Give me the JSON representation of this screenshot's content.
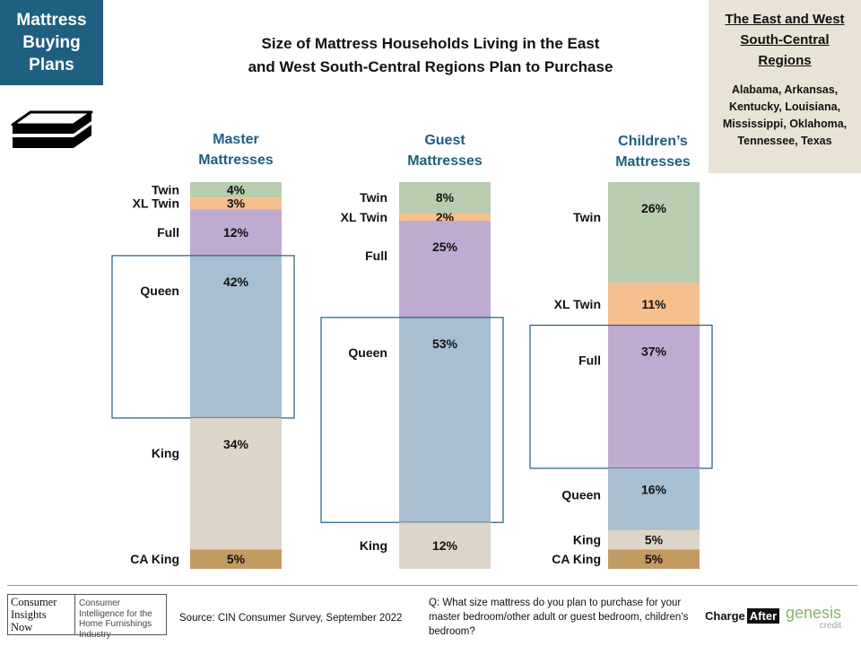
{
  "badge": {
    "line1": "Mattress",
    "line2": "Buying",
    "line3": "Plans"
  },
  "title": {
    "line1": "Size of Mattress Households  Living in the East",
    "line2": "and West South-Central  Regions Plan to Purchase"
  },
  "region": {
    "title": "The East and West South-Central Regions",
    "states": "Alabama, Arkansas, Kentucky, Louisiana, Mississippi, Oklahoma, Tennessee, Texas"
  },
  "footer": {
    "cin_logo_left": [
      "Consumer",
      "Insights",
      "Now"
    ],
    "cin_logo_right": "Consumer Intelligence for the Home Furnishings Industry",
    "source": "Source: CIN Consumer Survey, September  2022",
    "question": "Q: What size mattress do you plan to purchase for your master bedroom/other adult or guest bedroom, children’s bedroom?",
    "chargeafter_1": "Charge",
    "chargeafter_2": "After",
    "genesis_1": "genesis",
    "genesis_2": "credit"
  },
  "chart_data": {
    "type": "bar",
    "stacked": true,
    "colors": {
      "Twin": "#b8cdb0",
      "XL Twin": "#f6bf8e",
      "Full": "#bfaad0",
      "Queen": "#a7bfd0",
      "King": "#ddd6c8",
      "CA King": "#c49a63"
    },
    "highlight_color": "#1f5f7f",
    "columns": [
      {
        "name_line1": "Master",
        "name_line2": "Mattresses",
        "highlight": "Queen",
        "segments": [
          {
            "label": "Twin",
            "value": 4,
            "value_label": "4%"
          },
          {
            "label": "XL Twin",
            "value": 3,
            "value_label": "3%"
          },
          {
            "label": "Full",
            "value": 12,
            "value_label": "12%"
          },
          {
            "label": "Queen",
            "value": 42,
            "value_label": "42%"
          },
          {
            "label": "King",
            "value": 34,
            "value_label": "34%"
          },
          {
            "label": "CA King",
            "value": 5,
            "value_label": "5%"
          }
        ]
      },
      {
        "name_line1": "Guest",
        "name_line2": "Mattresses",
        "highlight": "Queen",
        "segments": [
          {
            "label": "Twin",
            "value": 8,
            "value_label": "8%"
          },
          {
            "label": "XL Twin",
            "value": 2,
            "value_label": "2%"
          },
          {
            "label": "Full",
            "value": 25,
            "value_label": "25%"
          },
          {
            "label": "Queen",
            "value": 53,
            "value_label": "53%"
          },
          {
            "label": "King",
            "value": 12,
            "value_label": "12%"
          }
        ]
      },
      {
        "name_line1": "Children’s",
        "name_line2": "Mattresses",
        "highlight": "Full",
        "segments": [
          {
            "label": "Twin",
            "value": 26,
            "value_label": "26%"
          },
          {
            "label": "XL Twin",
            "value": 11,
            "value_label": "11%"
          },
          {
            "label": "Full",
            "value": 37,
            "value_label": "37%"
          },
          {
            "label": "Queen",
            "value": 16,
            "value_label": "16%"
          },
          {
            "label": "King",
            "value": 5,
            "value_label": "5%"
          },
          {
            "label": "CA King",
            "value": 5,
            "value_label": "5%"
          }
        ]
      }
    ]
  }
}
